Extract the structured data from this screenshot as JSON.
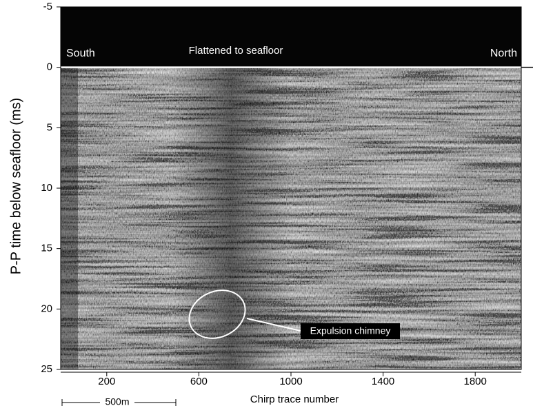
{
  "chart_data": {
    "type": "seismic-section",
    "xlabel": "Chirp trace number",
    "ylabel": "P-P time below seafloor (ms)",
    "xlim": [
      0,
      2000
    ],
    "xticks": [
      200,
      600,
      1000,
      1400,
      1800
    ],
    "ylim": [
      25,
      -5
    ],
    "yticks": [
      -5,
      0,
      5,
      10,
      15,
      20,
      25
    ],
    "annotations": {
      "south": "South",
      "north": "North",
      "flattened": "Flattened to seafloor",
      "chimney": "Expulsion chimney",
      "scale": "500m"
    }
  }
}
